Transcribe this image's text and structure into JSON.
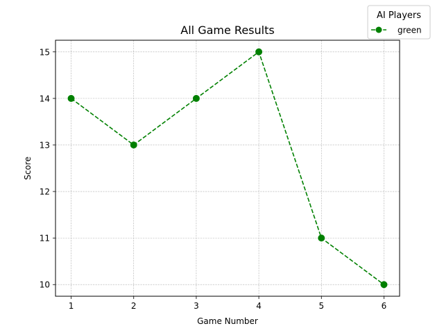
{
  "chart_data": {
    "type": "line",
    "title": "All Game Results",
    "xlabel": "Game Number",
    "ylabel": "Score",
    "xlim": [
      0.75,
      6.25
    ],
    "ylim": [
      9.75,
      15.25
    ],
    "x_ticks": [
      1,
      2,
      3,
      4,
      5,
      6
    ],
    "y_ticks": [
      10,
      11,
      12,
      13,
      14,
      15
    ],
    "grid": true,
    "legend": {
      "title": "AI Players",
      "placement": "top-right, outside plot"
    },
    "series": [
      {
        "name": "green",
        "color": "#008000",
        "line_style": "dashed",
        "marker": "circle",
        "x": [
          1,
          2,
          3,
          4,
          5,
          6
        ],
        "y": [
          14,
          13,
          14,
          15,
          11,
          10
        ]
      }
    ]
  }
}
